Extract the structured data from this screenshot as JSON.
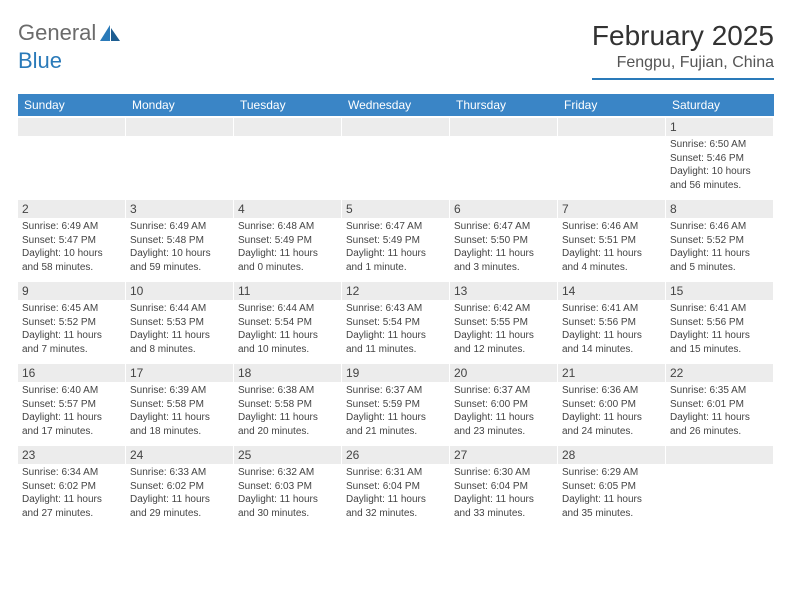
{
  "logo": {
    "text1": "General",
    "text2": "Blue"
  },
  "title": "February 2025",
  "location": "Fengpu, Fujian, China",
  "colors": {
    "header_bar": "#3a85c6",
    "daynum_bg": "#ececec",
    "accent": "#2a7ab9",
    "text": "#333333"
  },
  "weekdays": [
    "Sunday",
    "Monday",
    "Tuesday",
    "Wednesday",
    "Thursday",
    "Friday",
    "Saturday"
  ],
  "weeks": [
    [
      {
        "n": "",
        "empty": true
      },
      {
        "n": "",
        "empty": true
      },
      {
        "n": "",
        "empty": true
      },
      {
        "n": "",
        "empty": true
      },
      {
        "n": "",
        "empty": true
      },
      {
        "n": "",
        "empty": true
      },
      {
        "n": "1",
        "sunrise": "Sunrise: 6:50 AM",
        "sunset": "Sunset: 5:46 PM",
        "daylight": "Daylight: 10 hours and 56 minutes."
      }
    ],
    [
      {
        "n": "2",
        "sunrise": "Sunrise: 6:49 AM",
        "sunset": "Sunset: 5:47 PM",
        "daylight": "Daylight: 10 hours and 58 minutes."
      },
      {
        "n": "3",
        "sunrise": "Sunrise: 6:49 AM",
        "sunset": "Sunset: 5:48 PM",
        "daylight": "Daylight: 10 hours and 59 minutes."
      },
      {
        "n": "4",
        "sunrise": "Sunrise: 6:48 AM",
        "sunset": "Sunset: 5:49 PM",
        "daylight": "Daylight: 11 hours and 0 minutes."
      },
      {
        "n": "5",
        "sunrise": "Sunrise: 6:47 AM",
        "sunset": "Sunset: 5:49 PM",
        "daylight": "Daylight: 11 hours and 1 minute."
      },
      {
        "n": "6",
        "sunrise": "Sunrise: 6:47 AM",
        "sunset": "Sunset: 5:50 PM",
        "daylight": "Daylight: 11 hours and 3 minutes."
      },
      {
        "n": "7",
        "sunrise": "Sunrise: 6:46 AM",
        "sunset": "Sunset: 5:51 PM",
        "daylight": "Daylight: 11 hours and 4 minutes."
      },
      {
        "n": "8",
        "sunrise": "Sunrise: 6:46 AM",
        "sunset": "Sunset: 5:52 PM",
        "daylight": "Daylight: 11 hours and 5 minutes."
      }
    ],
    [
      {
        "n": "9",
        "sunrise": "Sunrise: 6:45 AM",
        "sunset": "Sunset: 5:52 PM",
        "daylight": "Daylight: 11 hours and 7 minutes."
      },
      {
        "n": "10",
        "sunrise": "Sunrise: 6:44 AM",
        "sunset": "Sunset: 5:53 PM",
        "daylight": "Daylight: 11 hours and 8 minutes."
      },
      {
        "n": "11",
        "sunrise": "Sunrise: 6:44 AM",
        "sunset": "Sunset: 5:54 PM",
        "daylight": "Daylight: 11 hours and 10 minutes."
      },
      {
        "n": "12",
        "sunrise": "Sunrise: 6:43 AM",
        "sunset": "Sunset: 5:54 PM",
        "daylight": "Daylight: 11 hours and 11 minutes."
      },
      {
        "n": "13",
        "sunrise": "Sunrise: 6:42 AM",
        "sunset": "Sunset: 5:55 PM",
        "daylight": "Daylight: 11 hours and 12 minutes."
      },
      {
        "n": "14",
        "sunrise": "Sunrise: 6:41 AM",
        "sunset": "Sunset: 5:56 PM",
        "daylight": "Daylight: 11 hours and 14 minutes."
      },
      {
        "n": "15",
        "sunrise": "Sunrise: 6:41 AM",
        "sunset": "Sunset: 5:56 PM",
        "daylight": "Daylight: 11 hours and 15 minutes."
      }
    ],
    [
      {
        "n": "16",
        "sunrise": "Sunrise: 6:40 AM",
        "sunset": "Sunset: 5:57 PM",
        "daylight": "Daylight: 11 hours and 17 minutes."
      },
      {
        "n": "17",
        "sunrise": "Sunrise: 6:39 AM",
        "sunset": "Sunset: 5:58 PM",
        "daylight": "Daylight: 11 hours and 18 minutes."
      },
      {
        "n": "18",
        "sunrise": "Sunrise: 6:38 AM",
        "sunset": "Sunset: 5:58 PM",
        "daylight": "Daylight: 11 hours and 20 minutes."
      },
      {
        "n": "19",
        "sunrise": "Sunrise: 6:37 AM",
        "sunset": "Sunset: 5:59 PM",
        "daylight": "Daylight: 11 hours and 21 minutes."
      },
      {
        "n": "20",
        "sunrise": "Sunrise: 6:37 AM",
        "sunset": "Sunset: 6:00 PM",
        "daylight": "Daylight: 11 hours and 23 minutes."
      },
      {
        "n": "21",
        "sunrise": "Sunrise: 6:36 AM",
        "sunset": "Sunset: 6:00 PM",
        "daylight": "Daylight: 11 hours and 24 minutes."
      },
      {
        "n": "22",
        "sunrise": "Sunrise: 6:35 AM",
        "sunset": "Sunset: 6:01 PM",
        "daylight": "Daylight: 11 hours and 26 minutes."
      }
    ],
    [
      {
        "n": "23",
        "sunrise": "Sunrise: 6:34 AM",
        "sunset": "Sunset: 6:02 PM",
        "daylight": "Daylight: 11 hours and 27 minutes."
      },
      {
        "n": "24",
        "sunrise": "Sunrise: 6:33 AM",
        "sunset": "Sunset: 6:02 PM",
        "daylight": "Daylight: 11 hours and 29 minutes."
      },
      {
        "n": "25",
        "sunrise": "Sunrise: 6:32 AM",
        "sunset": "Sunset: 6:03 PM",
        "daylight": "Daylight: 11 hours and 30 minutes."
      },
      {
        "n": "26",
        "sunrise": "Sunrise: 6:31 AM",
        "sunset": "Sunset: 6:04 PM",
        "daylight": "Daylight: 11 hours and 32 minutes."
      },
      {
        "n": "27",
        "sunrise": "Sunrise: 6:30 AM",
        "sunset": "Sunset: 6:04 PM",
        "daylight": "Daylight: 11 hours and 33 minutes."
      },
      {
        "n": "28",
        "sunrise": "Sunrise: 6:29 AM",
        "sunset": "Sunset: 6:05 PM",
        "daylight": "Daylight: 11 hours and 35 minutes."
      },
      {
        "n": "",
        "empty": true
      }
    ]
  ]
}
